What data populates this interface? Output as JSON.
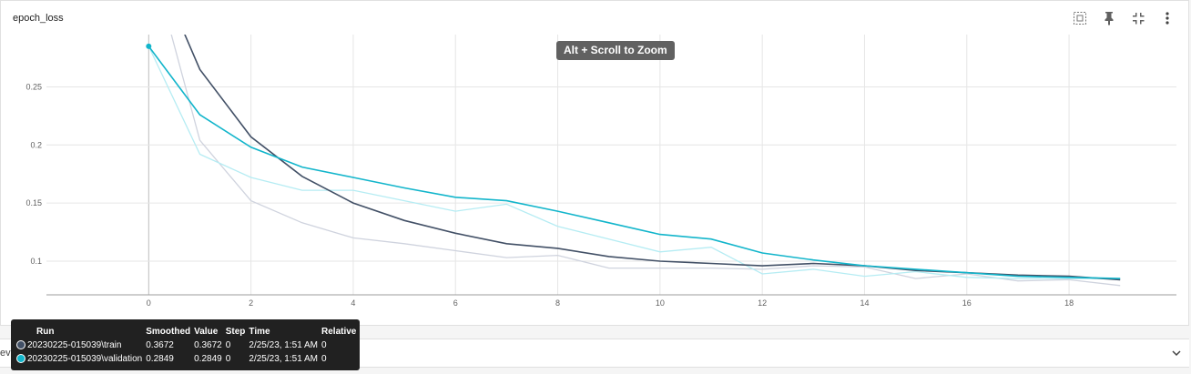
{
  "card": {
    "title": "epoch_loss"
  },
  "tooltip": "Alt + Scroll to Zoom",
  "toolbar": {
    "icons": [
      "fit-domain-icon",
      "pin-icon",
      "fullscreen-exit-icon",
      "more-vert-icon"
    ]
  },
  "bottom": {
    "label": "evaluation_loss_vs_iterations"
  },
  "colors": {
    "train": "#425066",
    "train_raw": "#cfd3de",
    "validation": "#12b5cb",
    "validation_raw": "#b5ecf3"
  },
  "legend": {
    "headers": [
      "Run",
      "Smoothed",
      "Value",
      "Step",
      "Time",
      "Relative"
    ],
    "rows": [
      {
        "run": "20230225-015039\\train",
        "smoothed": "0.3672",
        "value": "0.3672",
        "step": "0",
        "time": "2/25/23, 1:51 AM",
        "relative": "0",
        "color": "#425066"
      },
      {
        "run": "20230225-015039\\validation",
        "smoothed": "0.2849",
        "value": "0.2849",
        "step": "0",
        "time": "2/25/23, 1:51 AM",
        "relative": "0",
        "color": "#12b5cb"
      }
    ]
  },
  "chart_data": {
    "type": "line",
    "title": "epoch_loss",
    "xlim": [
      -2,
      20.1
    ],
    "ylim": [
      0.071,
      0.295
    ],
    "x_ticks": [
      0,
      2,
      4,
      6,
      8,
      10,
      12,
      14,
      16,
      18
    ],
    "y_ticks": [
      0.1,
      0.15,
      0.2,
      0.25
    ],
    "y_tick_labels": [
      "0.1",
      "0.15",
      "0.2",
      "0.25"
    ],
    "grid": true,
    "series": [
      {
        "name": "20230225-015039\\train",
        "kind": "raw",
        "color_key": "train_raw",
        "x": [
          0,
          1,
          2,
          3,
          4,
          5,
          6,
          7,
          8,
          9,
          10,
          11,
          12,
          13,
          14,
          15,
          16,
          17,
          18,
          19
        ],
        "y": [
          0.3672,
          0.204,
          0.152,
          0.133,
          0.12,
          0.115,
          0.109,
          0.103,
          0.105,
          0.094,
          0.094,
          0.094,
          0.093,
          0.096,
          0.095,
          0.085,
          0.089,
          0.083,
          0.084,
          0.079
        ]
      },
      {
        "name": "20230225-015039\\validation",
        "kind": "raw",
        "color_key": "validation_raw",
        "x": [
          0,
          1,
          2,
          3,
          4,
          5,
          6,
          7,
          8,
          9,
          10,
          11,
          12,
          13,
          14,
          15,
          16,
          17,
          18,
          19
        ],
        "y": [
          0.2849,
          0.192,
          0.172,
          0.161,
          0.161,
          0.152,
          0.143,
          0.149,
          0.13,
          0.119,
          0.108,
          0.112,
          0.089,
          0.093,
          0.087,
          0.091,
          0.086,
          0.085,
          0.085,
          0.085
        ]
      },
      {
        "name": "20230225-015039\\train",
        "kind": "smoothed",
        "color_key": "train",
        "x": [
          0,
          1,
          2,
          3,
          4,
          5,
          6,
          7,
          8,
          9,
          10,
          11,
          12,
          13,
          14,
          15,
          16,
          17,
          18,
          19
        ],
        "y": [
          0.3672,
          0.265,
          0.207,
          0.173,
          0.15,
          0.135,
          0.124,
          0.115,
          0.111,
          0.104,
          0.1,
          0.098,
          0.096,
          0.098,
          0.096,
          0.092,
          0.09,
          0.088,
          0.087,
          0.084
        ]
      },
      {
        "name": "20230225-015039\\validation",
        "kind": "smoothed",
        "color_key": "validation",
        "x": [
          0,
          1,
          2,
          3,
          4,
          5,
          6,
          7,
          8,
          9,
          10,
          11,
          12,
          13,
          14,
          15,
          16,
          17,
          18,
          19
        ],
        "y": [
          0.2849,
          0.226,
          0.198,
          0.181,
          0.172,
          0.163,
          0.155,
          0.152,
          0.143,
          0.133,
          0.123,
          0.119,
          0.107,
          0.101,
          0.096,
          0.093,
          0.09,
          0.087,
          0.086,
          0.085
        ]
      }
    ]
  }
}
